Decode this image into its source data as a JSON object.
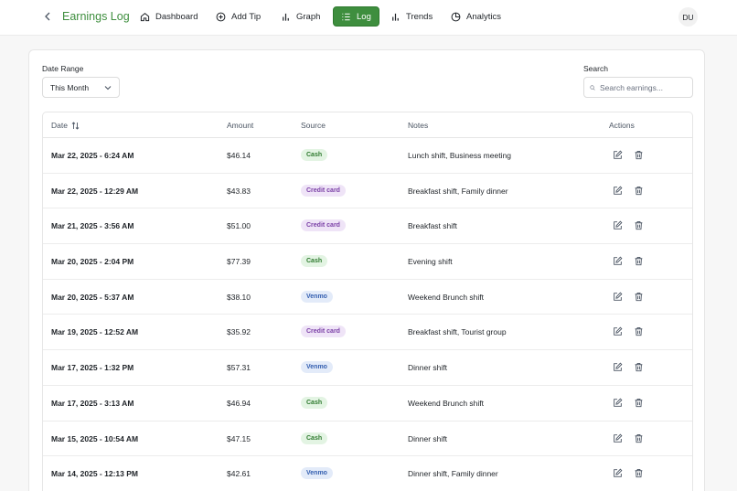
{
  "header": {
    "title": "Earnings Log",
    "nav": [
      {
        "label": "Dashboard",
        "icon": "home-icon"
      },
      {
        "label": "Add Tip",
        "icon": "plus-circle-icon"
      },
      {
        "label": "Graph",
        "icon": "bar-chart-icon"
      },
      {
        "label": "Log",
        "icon": "list-icon",
        "active": true
      },
      {
        "label": "Trends",
        "icon": "bar-chart-icon"
      },
      {
        "label": "Analytics",
        "icon": "pie-chart-icon"
      }
    ],
    "avatar": "DU"
  },
  "filters": {
    "date_range_label": "Date Range",
    "date_range_value": "This Month",
    "search_label": "Search",
    "search_placeholder": "Search earnings..."
  },
  "table": {
    "columns": {
      "date": "Date",
      "amount": "Amount",
      "source": "Source",
      "notes": "Notes",
      "actions": "Actions"
    },
    "rows": [
      {
        "date": "Mar 22, 2025 - 6:24 AM",
        "amount": "$46.14",
        "source": "Cash",
        "notes": "Lunch shift, Business meeting"
      },
      {
        "date": "Mar 22, 2025 - 12:29 AM",
        "amount": "$43.83",
        "source": "Credit card",
        "notes": "Breakfast shift, Family dinner"
      },
      {
        "date": "Mar 21, 2025 - 3:56 AM",
        "amount": "$51.00",
        "source": "Credit card",
        "notes": "Breakfast shift"
      },
      {
        "date": "Mar 20, 2025 - 2:04 PM",
        "amount": "$77.39",
        "source": "Cash",
        "notes": "Evening shift"
      },
      {
        "date": "Mar 20, 2025 - 5:37 AM",
        "amount": "$38.10",
        "source": "Venmo",
        "notes": "Weekend Brunch shift"
      },
      {
        "date": "Mar 19, 2025 - 12:52 AM",
        "amount": "$35.92",
        "source": "Credit card",
        "notes": "Breakfast shift, Tourist group"
      },
      {
        "date": "Mar 17, 2025 - 1:32 PM",
        "amount": "$57.31",
        "source": "Venmo",
        "notes": "Dinner shift"
      },
      {
        "date": "Mar 17, 2025 - 3:13 AM",
        "amount": "$46.94",
        "source": "Cash",
        "notes": "Weekend Brunch shift"
      },
      {
        "date": "Mar 15, 2025 - 10:54 AM",
        "amount": "$47.15",
        "source": "Cash",
        "notes": "Dinner shift"
      },
      {
        "date": "Mar 14, 2025 - 12:13 PM",
        "amount": "$42.61",
        "source": "Venmo",
        "notes": "Dinner shift, Family dinner"
      }
    ]
  },
  "colors": {
    "accent": "#3e8e3e",
    "title": "#3f8f3f",
    "cash": "#2f7a2f",
    "credit": "#7a3fa6",
    "venmo": "#345fb0"
  }
}
